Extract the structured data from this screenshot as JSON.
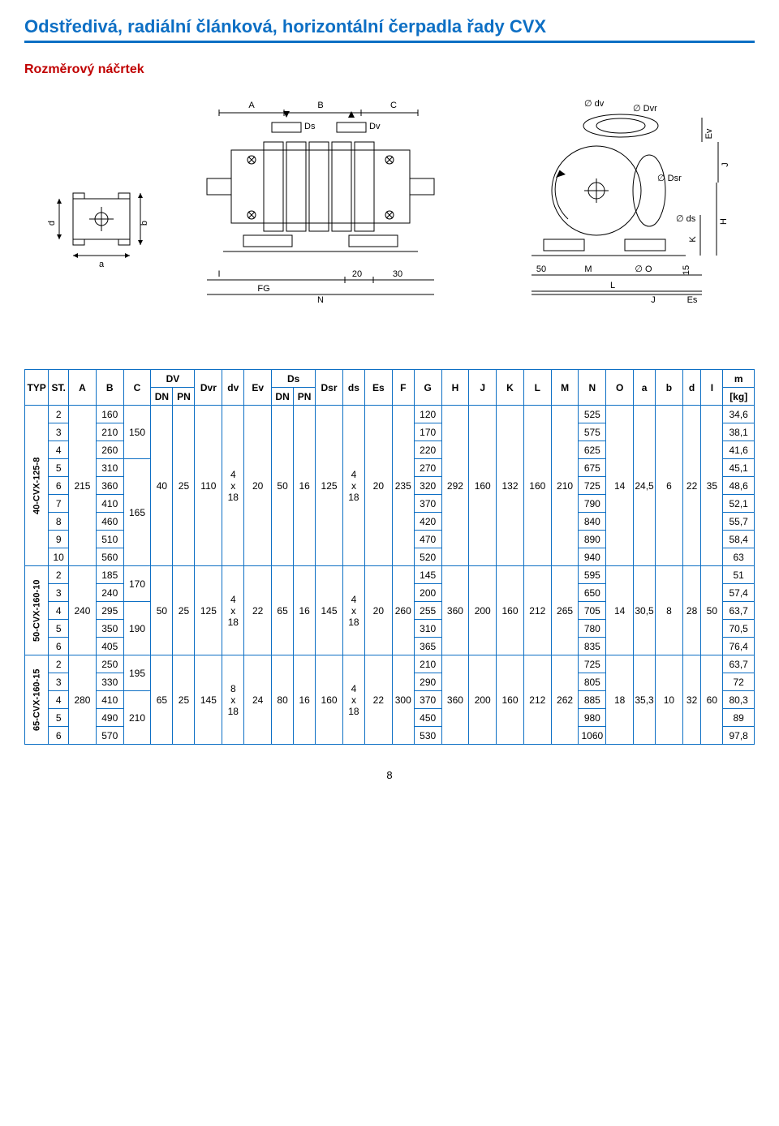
{
  "page": {
    "title": "Odstředivá, radiální článková, horizontální čerpadla řady CVX",
    "title_color": "#0d6fc4",
    "rule_color": "#0d6fc4",
    "subtitle": "Rozměrový náčrtek",
    "subtitle_color": "#c00000",
    "page_number": "8"
  },
  "diagram_labels": {
    "left": {
      "d": "d",
      "b": "b",
      "a": "a"
    },
    "center": {
      "A": "A",
      "B": "B",
      "C": "C",
      "Ds": "Ds",
      "Dv": "Dv",
      "I": "I",
      "FG": "FG",
      "N": "N",
      "twenty": "20",
      "thirty": "30"
    },
    "right": {
      "dv": "∅ dv",
      "Dvr": "∅ Dvr",
      "Ev": "Ev",
      "J": "J",
      "Dsr": "∅ Dsr",
      "ds": "∅ ds",
      "H": "H",
      "K": "K",
      "fifty": "50",
      "M": "M",
      "zero": "∅ O",
      "L": "L",
      "Jb": "J",
      "Es": "Es",
      "fifteen": "15"
    }
  },
  "table": {
    "header_bg": "#ffffff",
    "border_color": "#0d6fc4",
    "col_widths": {
      "typ": 26,
      "st": 22,
      "a": 30,
      "b": 30,
      "c": 30,
      "dv_dn": 24,
      "dv_pn": 24,
      "dvr": 30,
      "dvl": 24,
      "ev": 30,
      "ds_dn": 24,
      "ds_pn": 24,
      "dsr": 30,
      "ds2": 24,
      "es": 30,
      "f": 24,
      "g": 30,
      "h": 30,
      "j": 30,
      "k": 30,
      "l": 30,
      "m": 30,
      "n": 30,
      "o": 30,
      "a2": 24,
      "b2": 30,
      "d2": 20,
      "i": 24,
      "i2": 24,
      "mkg": 34
    },
    "header": {
      "typ": "TYP",
      "st": "ST.",
      "a": "A",
      "b": "B",
      "c": "C",
      "dv": "DV",
      "dn": "DN",
      "pn": "PN",
      "dvr": "Dvr",
      "dv2": "dv",
      "ev": "Ev",
      "ds": "Ds",
      "dsr": "Dsr",
      "ds2": "ds",
      "es": "Es",
      "f": "F",
      "g": "G",
      "h": "H",
      "j": "J",
      "k": "K",
      "l": "L",
      "m": "M",
      "n": "N",
      "o": "O",
      "a2": "a",
      "b2": "b",
      "d2": "d",
      "i2": "I",
      "mkg": "m",
      "kg": "[kg]"
    },
    "groups": [
      {
        "label": "40-CVX-125-8",
        "a": "215",
        "c_splits": [
          {
            "span": 3,
            "val": "150"
          },
          {
            "span": 6,
            "val": "165"
          }
        ],
        "dv_dn": "40",
        "dv_pn": "25",
        "dvr": "110",
        "dvcol": "4 x 18",
        "ev": "20",
        "ds_dn": "50",
        "ds_pn": "16",
        "dsr": "125",
        "dscol": "4 x 18",
        "es": "20",
        "f": "235",
        "h": "292",
        "j": "160",
        "k": "132",
        "l": "160",
        "m": "210",
        "o": "14",
        "a2": "24,5",
        "b2": "6",
        "d2": "22",
        "i2": "35",
        "rows": [
          {
            "st": "2",
            "b": "160",
            "g": "120",
            "n": "525",
            "mkg": "34,6"
          },
          {
            "st": "3",
            "b": "210",
            "g": "170",
            "n": "575",
            "mkg": "38,1"
          },
          {
            "st": "4",
            "b": "260",
            "g": "220",
            "n": "625",
            "mkg": "41,6"
          },
          {
            "st": "5",
            "b": "310",
            "g": "270",
            "n": "675",
            "mkg": "45,1"
          },
          {
            "st": "6",
            "b": "360",
            "g": "320",
            "n": "725",
            "mkg": "48,6"
          },
          {
            "st": "7",
            "b": "410",
            "g": "370",
            "n": "790",
            "mkg": "52,1"
          },
          {
            "st": "8",
            "b": "460",
            "g": "420",
            "n": "840",
            "mkg": "55,7"
          },
          {
            "st": "9",
            "b": "510",
            "g": "470",
            "n": "890",
            "mkg": "58,4"
          },
          {
            "st": "10",
            "b": "560",
            "g": "520",
            "n": "940",
            "mkg": "63"
          }
        ]
      },
      {
        "label": "50-CVX-160-10",
        "a": "240",
        "c_splits": [
          {
            "span": 2,
            "val": "170"
          },
          {
            "span": 3,
            "val": "190"
          }
        ],
        "dv_dn": "50",
        "dv_pn": "25",
        "dvr": "125",
        "dvcol": "4 x 18",
        "ev": "22",
        "ds_dn": "65",
        "ds_pn": "16",
        "dsr": "145",
        "dscol": "4 x 18",
        "es": "20",
        "f": "260",
        "h": "360",
        "j": "200",
        "k": "160",
        "l": "212",
        "m": "265",
        "o": "14",
        "a2": "30,5",
        "b2": "8",
        "d2": "28",
        "i2": "50",
        "rows": [
          {
            "st": "2",
            "b": "185",
            "g": "145",
            "n": "595",
            "mkg": "51"
          },
          {
            "st": "3",
            "b": "240",
            "g": "200",
            "n": "650",
            "mkg": "57,4"
          },
          {
            "st": "4",
            "b": "295",
            "g": "255",
            "n": "705",
            "mkg": "63,7"
          },
          {
            "st": "5",
            "b": "350",
            "g": "310",
            "n": "780",
            "mkg": "70,5"
          },
          {
            "st": "6",
            "b": "405",
            "g": "365",
            "n": "835",
            "mkg": "76,4"
          }
        ]
      },
      {
        "label": "65-CVX-160-15",
        "a": "280",
        "c_splits": [
          {
            "span": 2,
            "val": "195"
          },
          {
            "span": 3,
            "val": "210"
          }
        ],
        "dv_dn": "65",
        "dv_pn": "25",
        "dvr": "145",
        "dvcol": "8 x 18",
        "ev": "24",
        "ds_dn": "80",
        "ds_pn": "16",
        "dsr": "160",
        "dscol": "4 x 18",
        "es": "22",
        "f": "300",
        "h": "360",
        "j": "200",
        "k": "160",
        "l": "212",
        "m": "262",
        "o": "18",
        "a2": "35,3",
        "b2": "10",
        "d2": "32",
        "i2": "60",
        "rows": [
          {
            "st": "2",
            "b": "250",
            "g": "210",
            "n": "725",
            "mkg": "63,7"
          },
          {
            "st": "3",
            "b": "330",
            "g": "290",
            "n": "805",
            "mkg": "72"
          },
          {
            "st": "4",
            "b": "410",
            "g": "370",
            "n": "885",
            "mkg": "80,3"
          },
          {
            "st": "5",
            "b": "490",
            "g": "450",
            "n": "980",
            "mkg": "89"
          },
          {
            "st": "6",
            "b": "570",
            "g": "530",
            "n": "1060",
            "mkg": "97,8"
          }
        ]
      }
    ]
  }
}
